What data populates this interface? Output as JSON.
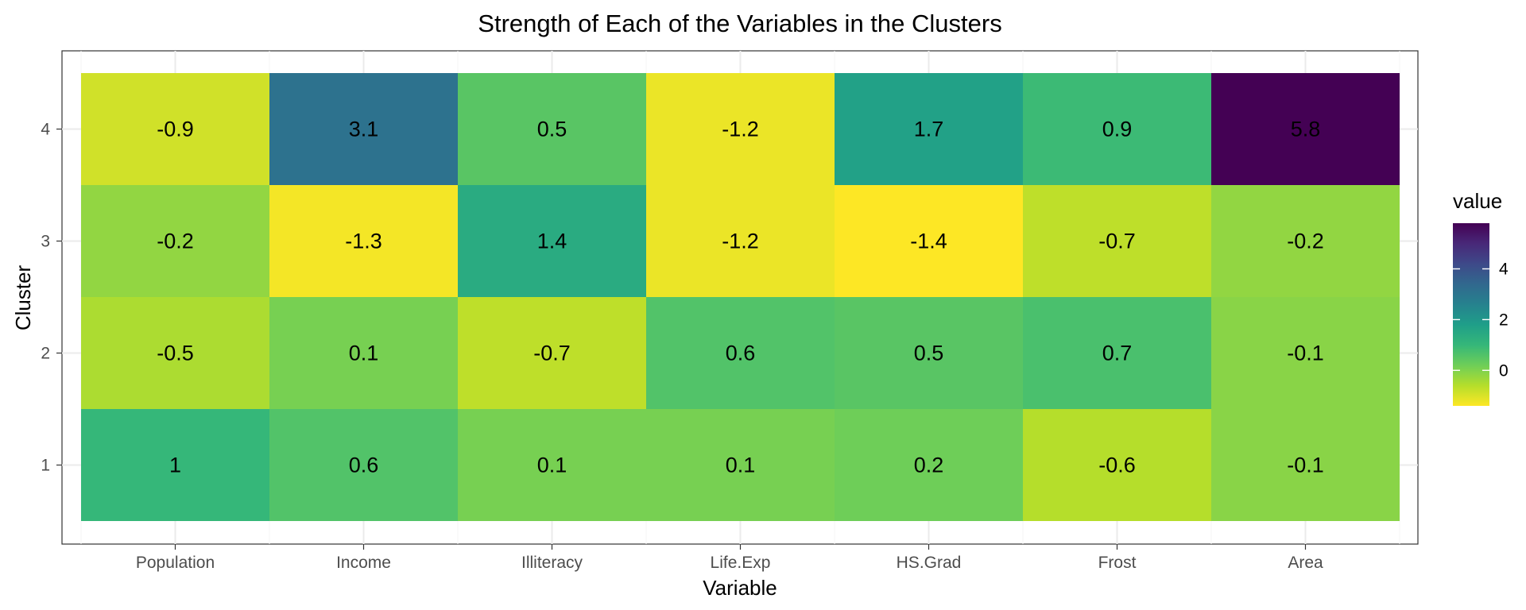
{
  "chart_data": {
    "type": "heatmap",
    "title": "Strength of Each of the Variables in the Clusters",
    "xlabel": "Variable",
    "ylabel": "Cluster",
    "x_categories": [
      "Population",
      "Income",
      "Illiteracy",
      "Life.Exp",
      "HS.Grad",
      "Frost",
      "Area"
    ],
    "y_categories": [
      "1",
      "2",
      "3",
      "4"
    ],
    "cells": [
      {
        "x": "Population",
        "y": "1",
        "value": 1,
        "label": "1"
      },
      {
        "x": "Income",
        "y": "1",
        "value": 0.6,
        "label": "0.6"
      },
      {
        "x": "Illiteracy",
        "y": "1",
        "value": 0.1,
        "label": "0.1"
      },
      {
        "x": "Life.Exp",
        "y": "1",
        "value": 0.1,
        "label": "0.1"
      },
      {
        "x": "HS.Grad",
        "y": "1",
        "value": 0.2,
        "label": "0.2"
      },
      {
        "x": "Frost",
        "y": "1",
        "value": -0.6,
        "label": "-0.6"
      },
      {
        "x": "Area",
        "y": "1",
        "value": -0.1,
        "label": "-0.1"
      },
      {
        "x": "Population",
        "y": "2",
        "value": -0.5,
        "label": "-0.5"
      },
      {
        "x": "Income",
        "y": "2",
        "value": 0.1,
        "label": "0.1"
      },
      {
        "x": "Illiteracy",
        "y": "2",
        "value": -0.7,
        "label": "-0.7"
      },
      {
        "x": "Life.Exp",
        "y": "2",
        "value": 0.6,
        "label": "0.6"
      },
      {
        "x": "HS.Grad",
        "y": "2",
        "value": 0.5,
        "label": "0.5"
      },
      {
        "x": "Frost",
        "y": "2",
        "value": 0.7,
        "label": "0.7"
      },
      {
        "x": "Area",
        "y": "2",
        "value": -0.1,
        "label": "-0.1"
      },
      {
        "x": "Population",
        "y": "3",
        "value": -0.2,
        "label": "-0.2"
      },
      {
        "x": "Income",
        "y": "3",
        "value": -1.3,
        "label": "-1.3"
      },
      {
        "x": "Illiteracy",
        "y": "3",
        "value": 1.4,
        "label": "1.4"
      },
      {
        "x": "Life.Exp",
        "y": "3",
        "value": -1.2,
        "label": "-1.2"
      },
      {
        "x": "HS.Grad",
        "y": "3",
        "value": -1.4,
        "label": "-1.4"
      },
      {
        "x": "Frost",
        "y": "3",
        "value": -0.7,
        "label": "-0.7"
      },
      {
        "x": "Area",
        "y": "3",
        "value": -0.2,
        "label": "-0.2"
      },
      {
        "x": "Population",
        "y": "4",
        "value": -0.9,
        "label": "-0.9"
      },
      {
        "x": "Income",
        "y": "4",
        "value": 3.1,
        "label": "3.1"
      },
      {
        "x": "Illiteracy",
        "y": "4",
        "value": 0.5,
        "label": "0.5"
      },
      {
        "x": "Life.Exp",
        "y": "4",
        "value": -1.2,
        "label": "-1.2"
      },
      {
        "x": "HS.Grad",
        "y": "4",
        "value": 1.7,
        "label": "1.7"
      },
      {
        "x": "Frost",
        "y": "4",
        "value": 0.9,
        "label": "0.9"
      },
      {
        "x": "Area",
        "y": "4",
        "value": 5.8,
        "label": "5.8"
      }
    ],
    "legend": {
      "title": "value",
      "placement": "right",
      "ticks": [
        0,
        2,
        4
      ],
      "tick_labels": [
        "0",
        "2",
        "4"
      ],
      "range": [
        -1.4,
        5.8
      ]
    },
    "colorscale": [
      "#fde725",
      "#b5de2b",
      "#6ece58",
      "#35b779",
      "#1f9e89",
      "#26828e",
      "#31688e",
      "#3e4989",
      "#482878",
      "#440154"
    ],
    "grid": true,
    "theme": "bw"
  }
}
